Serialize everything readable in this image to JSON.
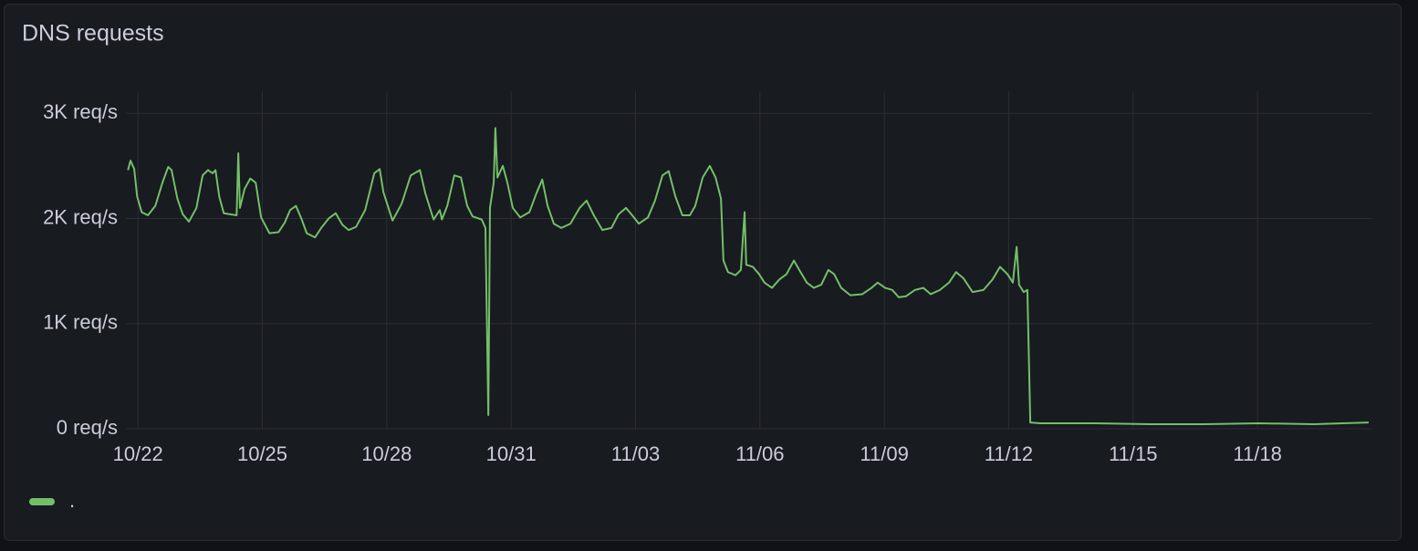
{
  "chart_data": {
    "type": "line",
    "title": "DNS requests",
    "x": [
      21.76,
      21.82,
      21.91,
      21.98,
      22.09,
      22.24,
      22.42,
      22.59,
      22.73,
      22.81,
      22.95,
      23.08,
      23.23,
      23.41,
      23.56,
      23.69,
      23.8,
      23.87,
      23.96,
      24.07,
      24.22,
      24.38,
      24.42,
      24.46,
      24.57,
      24.71,
      24.84,
      24.97,
      25.17,
      25.39,
      25.54,
      25.67,
      25.81,
      25.94,
      26.07,
      26.27,
      26.42,
      26.6,
      26.77,
      26.93,
      27.08,
      27.26,
      27.48,
      27.7,
      27.83,
      27.92,
      28.14,
      28.36,
      28.58,
      28.8,
      28.93,
      29.13,
      29.28,
      29.33,
      29.46,
      29.63,
      29.79,
      29.94,
      30.07,
      30.29,
      30.38,
      30.45,
      30.49,
      30.58,
      30.62,
      30.67,
      30.8,
      30.91,
      31.04,
      31.22,
      31.44,
      31.61,
      31.75,
      31.88,
      32.03,
      32.21,
      32.43,
      32.65,
      32.82,
      32.98,
      33.2,
      33.42,
      33.59,
      33.77,
      33.92,
      34.08,
      34.3,
      34.47,
      34.65,
      34.8,
      34.96,
      35.13,
      35.31,
      35.44,
      35.62,
      35.79,
      35.93,
      36.06,
      36.12,
      36.23,
      36.41,
      36.54,
      36.63,
      36.67,
      36.83,
      36.98,
      37.11,
      37.29,
      37.47,
      37.64,
      37.82,
      37.95,
      38.13,
      38.3,
      38.48,
      38.65,
      38.79,
      38.96,
      39.18,
      39.47,
      39.69,
      39.84,
      40.02,
      40.19,
      40.35,
      40.52,
      40.74,
      40.94,
      41.12,
      41.34,
      41.56,
      41.73,
      41.91,
      42.13,
      42.39,
      42.61,
      42.79,
      42.97,
      43.1,
      43.19,
      43.25,
      43.36,
      43.45,
      43.52,
      43.76,
      45.08,
      46.4,
      47.72,
      49.04,
      50.36,
      51.68
    ],
    "series": [
      {
        "name": ".",
        "color": "#73bf69",
        "values": [
          2460,
          2550,
          2470,
          2210,
          2060,
          2030,
          2120,
          2340,
          2490,
          2460,
          2190,
          2040,
          1970,
          2100,
          2410,
          2460,
          2430,
          2460,
          2210,
          2050,
          2040,
          2030,
          2620,
          2100,
          2280,
          2380,
          2340,
          2010,
          1860,
          1870,
          1960,
          2080,
          2120,
          2000,
          1860,
          1820,
          1910,
          2000,
          2050,
          1940,
          1890,
          1920,
          2080,
          2430,
          2470,
          2250,
          1980,
          2140,
          2410,
          2460,
          2240,
          1990,
          2080,
          1990,
          2120,
          2410,
          2390,
          2120,
          2020,
          1990,
          1910,
          130,
          2100,
          2340,
          2860,
          2390,
          2500,
          2340,
          2100,
          2010,
          2060,
          2240,
          2370,
          2120,
          1950,
          1910,
          1950,
          2100,
          2170,
          2040,
          1890,
          1910,
          2040,
          2100,
          2030,
          1950,
          2010,
          2170,
          2410,
          2450,
          2210,
          2030,
          2030,
          2120,
          2390,
          2500,
          2390,
          2190,
          1600,
          1490,
          1460,
          1510,
          2060,
          1560,
          1540,
          1470,
          1390,
          1340,
          1420,
          1470,
          1600,
          1510,
          1390,
          1340,
          1370,
          1510,
          1470,
          1340,
          1270,
          1280,
          1340,
          1390,
          1340,
          1320,
          1250,
          1260,
          1320,
          1340,
          1280,
          1320,
          1390,
          1490,
          1430,
          1300,
          1320,
          1420,
          1540,
          1470,
          1390,
          1730,
          1370,
          1300,
          1320,
          60,
          52,
          52,
          43,
          43,
          52,
          43,
          60
        ]
      }
    ],
    "xlim": [
      21.71,
      51.77
    ],
    "xticks": [
      {
        "value": 22,
        "label": "10/22"
      },
      {
        "value": 25,
        "label": "10/25"
      },
      {
        "value": 28,
        "label": "10/28"
      },
      {
        "value": 31,
        "label": "10/31"
      },
      {
        "value": 34,
        "label": "11/03"
      },
      {
        "value": 37,
        "label": "11/06"
      },
      {
        "value": 40,
        "label": "11/09"
      },
      {
        "value": 43,
        "label": "11/12"
      },
      {
        "value": 46,
        "label": "11/15"
      },
      {
        "value": 49,
        "label": "11/18"
      }
    ],
    "ylim": [
      0,
      3210
    ],
    "yticks": [
      {
        "value": 0,
        "label": "0 req/s"
      },
      {
        "value": 1000,
        "label": "1K req/s"
      },
      {
        "value": 2000,
        "label": "2K req/s"
      },
      {
        "value": 3000,
        "label": "3K req/s"
      }
    ],
    "grid": true
  }
}
